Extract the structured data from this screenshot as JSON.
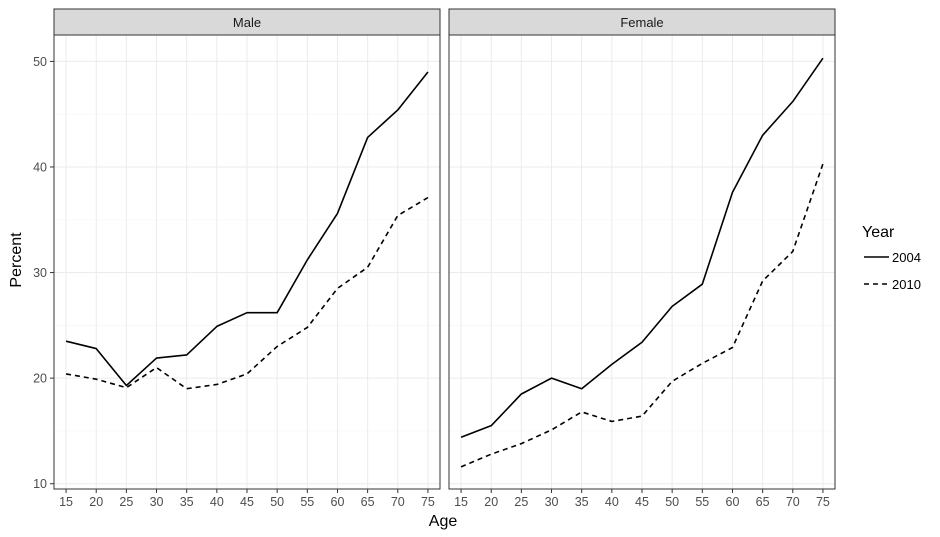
{
  "chart_data": {
    "type": "line",
    "xlabel": "Age",
    "ylabel": "Percent",
    "x": [
      15,
      20,
      25,
      30,
      35,
      40,
      45,
      50,
      55,
      60,
      65,
      70,
      75
    ],
    "xlim": [
      13,
      77
    ],
    "ylim": [
      9.5,
      52.5
    ],
    "yticks": [
      10,
      20,
      30,
      40,
      50
    ],
    "grid": true,
    "legend": {
      "title": "Year",
      "placement": "right",
      "entries": [
        {
          "label": "2004",
          "linetype": "solid"
        },
        {
          "label": "2010",
          "linetype": "dashed"
        }
      ]
    },
    "panels": [
      {
        "label": "Male",
        "series": [
          {
            "name": "2004",
            "linetype": "solid",
            "values": [
              23.5,
              22.8,
              19.3,
              21.9,
              22.2,
              24.9,
              26.2,
              26.2,
              31.2,
              35.6,
              42.8,
              45.4,
              49.0
            ]
          },
          {
            "name": "2010",
            "linetype": "dashed",
            "values": [
              20.4,
              19.9,
              19.1,
              21.0,
              19.0,
              19.4,
              20.4,
              23.0,
              24.8,
              28.5,
              30.5,
              35.4,
              37.1
            ]
          }
        ]
      },
      {
        "label": "Female",
        "series": [
          {
            "name": "2004",
            "linetype": "solid",
            "values": [
              14.4,
              15.5,
              18.5,
              20.0,
              19.0,
              21.3,
              23.4,
              26.8,
              28.9,
              37.6,
              43.0,
              46.2,
              50.3
            ]
          },
          {
            "name": "2010",
            "linetype": "dashed",
            "values": [
              11.6,
              12.8,
              13.8,
              15.1,
              16.8,
              15.9,
              16.4,
              19.7,
              21.4,
              22.9,
              29.2,
              32.0,
              40.3
            ]
          }
        ]
      }
    ]
  }
}
